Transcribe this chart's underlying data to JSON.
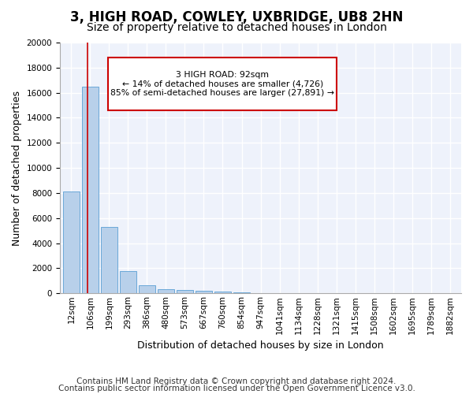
{
  "title": "3, HIGH ROAD, COWLEY, UXBRIDGE, UB8 2HN",
  "subtitle": "Size of property relative to detached houses in London",
  "xlabel": "Distribution of detached houses by size in London",
  "ylabel": "Number of detached properties",
  "bin_labels": [
    "12sqm",
    "106sqm",
    "199sqm",
    "293sqm",
    "386sqm",
    "480sqm",
    "573sqm",
    "667sqm",
    "760sqm",
    "854sqm",
    "947sqm",
    "1041sqm",
    "1134sqm",
    "1228sqm",
    "1321sqm",
    "1415sqm",
    "1508sqm",
    "1602sqm",
    "1695sqm",
    "1789sqm",
    "1882sqm"
  ],
  "bar_values": [
    8100,
    16500,
    5300,
    1750,
    650,
    350,
    280,
    200,
    150,
    50,
    20,
    8,
    4,
    2,
    1,
    1,
    0,
    0,
    0,
    0,
    0
  ],
  "bar_color": "#b8d0ea",
  "bar_edge_color": "#5a9fd4",
  "background_color": "#eef2fb",
  "grid_color": "#ffffff",
  "annotation_text": "3 HIGH ROAD: 92sqm\n← 14% of detached houses are smaller (4,726)\n85% of semi-detached houses are larger (27,891) →",
  "annotation_box_color": "#ffffff",
  "annotation_box_edge": "#cc0000",
  "red_line_x": 0.86,
  "ylim": [
    0,
    20000
  ],
  "yticks": [
    0,
    2000,
    4000,
    6000,
    8000,
    10000,
    12000,
    14000,
    16000,
    18000,
    20000
  ],
  "footer_line1": "Contains HM Land Registry data © Crown copyright and database right 2024.",
  "footer_line2": "Contains public sector information licensed under the Open Government Licence v3.0.",
  "title_fontsize": 12,
  "subtitle_fontsize": 10,
  "tick_fontsize": 7.5,
  "ylabel_fontsize": 9,
  "xlabel_fontsize": 9,
  "footer_fontsize": 7.5
}
